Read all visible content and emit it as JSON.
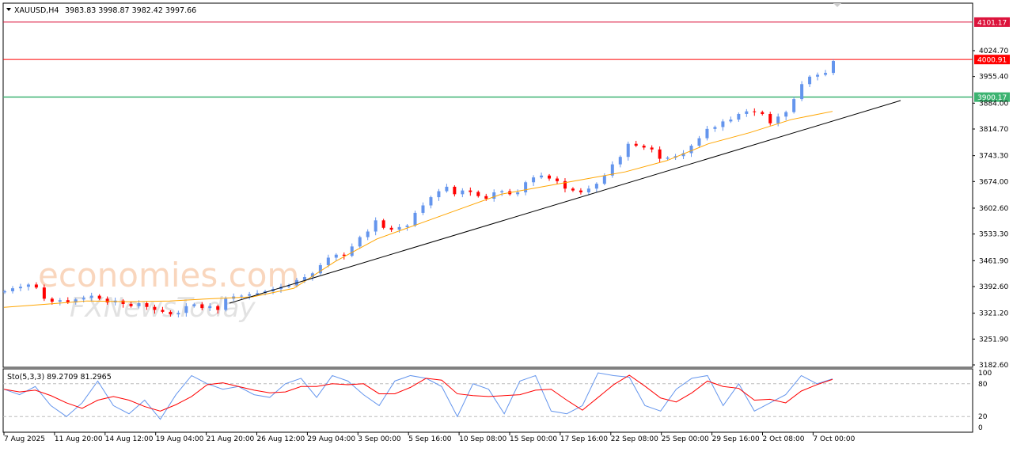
{
  "header": {
    "symbol": "XAUUSD,H4",
    "ohlc": "3983.83 3998.87 3982.42 3997.66"
  },
  "watermark": {
    "logo1": "economies.com",
    "logo2": "FXNewsToday"
  },
  "colors": {
    "bull": "#6495ED",
    "bear": "#FF0000",
    "ma": "#FFA500",
    "trendline": "#000000",
    "resistance": "#DC143C",
    "support": "#2E8B57",
    "stoch_k": "#6495ED",
    "stoch_d": "#FF0000"
  },
  "chart_data": [
    {
      "type": "candlestick",
      "title": "XAUUSD,H4",
      "ylim": [
        3182.6,
        4101.17
      ],
      "y_ticks": [
        "4024.70",
        "3955.40",
        "3884.00",
        "3814.70",
        "3743.30",
        "3674.00",
        "3602.60",
        "3533.30",
        "3461.90",
        "3392.60",
        "3321.20",
        "3251.90",
        "3182.60"
      ],
      "x_ticks": [
        "7 Aug 2025",
        "11 Aug 20:00",
        "14 Aug 12:00",
        "19 Aug 04:00",
        "21 Aug 20:00",
        "26 Aug 12:00",
        "29 Aug 04:00",
        "3 Sep 00:00",
        "5 Sep 16:00",
        "10 Sep 08:00",
        "15 Sep 00:00",
        "17 Sep 16:00",
        "22 Sep 08:00",
        "25 Sep 00:00",
        "29 Sep 16:00",
        "2 Oct 08:00",
        "7 Oct 00:00"
      ],
      "closes_approx": [
        3380,
        3388,
        3392,
        3398,
        3390,
        3360,
        3352,
        3356,
        3350,
        3358,
        3362,
        3368,
        3360,
        3350,
        3355,
        3346,
        3340,
        3348,
        3338,
        3330,
        3325,
        3318,
        3322,
        3340,
        3345,
        3335,
        3340,
        3330,
        3360,
        3366,
        3368,
        3372,
        3375,
        3380,
        3386,
        3392,
        3396,
        3410,
        3418,
        3428,
        3450,
        3470,
        3478,
        3475,
        3500,
        3525,
        3540,
        3570,
        3550,
        3545,
        3552,
        3556,
        3590,
        3610,
        3632,
        3648,
        3660,
        3640,
        3650,
        3646,
        3635,
        3628,
        3645,
        3648,
        3640,
        3645,
        3672,
        3685,
        3690,
        3682,
        3675,
        3655,
        3650,
        3645,
        3655,
        3668,
        3690,
        3720,
        3740,
        3775,
        3770,
        3765,
        3760,
        3735,
        3738,
        3742,
        3750,
        3770,
        3790,
        3815,
        3820,
        3835,
        3840,
        3855,
        3862,
        3860,
        3855,
        3830,
        3848,
        3860,
        3895,
        3935,
        3955,
        3960,
        3965,
        3997
      ],
      "moving_average_approx": [
        3337,
        3345,
        3354,
        3352,
        3354,
        3360,
        3365,
        3388,
        3460,
        3520,
        3560,
        3600,
        3640,
        3660,
        3680,
        3700,
        3730,
        3775,
        3805,
        3840,
        3862
      ],
      "trendline": {
        "start": 3348,
        "end": 3891
      },
      "horizontal_levels": [
        {
          "label": "4101.17",
          "value": 4101.17,
          "color": "#DC143C"
        },
        {
          "label": "4000.91",
          "value": 4000.91,
          "color": "#FF0000"
        },
        {
          "label": "3900.17",
          "value": 3900.17,
          "color": "#3CB371"
        }
      ]
    },
    {
      "type": "line",
      "title": "Sto(5,3,3) 89.2709 81.2965",
      "ylim": [
        0,
        100
      ],
      "y_ticks": [
        "100",
        "80",
        "20",
        "0"
      ],
      "levels": [
        80,
        20
      ],
      "k_approx": [
        70,
        60,
        75,
        40,
        20,
        45,
        85,
        40,
        25,
        50,
        15,
        60,
        95,
        80,
        70,
        75,
        60,
        55,
        80,
        90,
        55,
        95,
        85,
        60,
        40,
        85,
        95,
        90,
        75,
        20,
        80,
        70,
        25,
        85,
        95,
        30,
        25,
        40,
        100,
        95,
        92,
        40,
        30,
        70,
        90,
        95,
        40,
        80,
        30,
        45,
        60,
        95,
        80,
        89
      ]
    }
  ]
}
